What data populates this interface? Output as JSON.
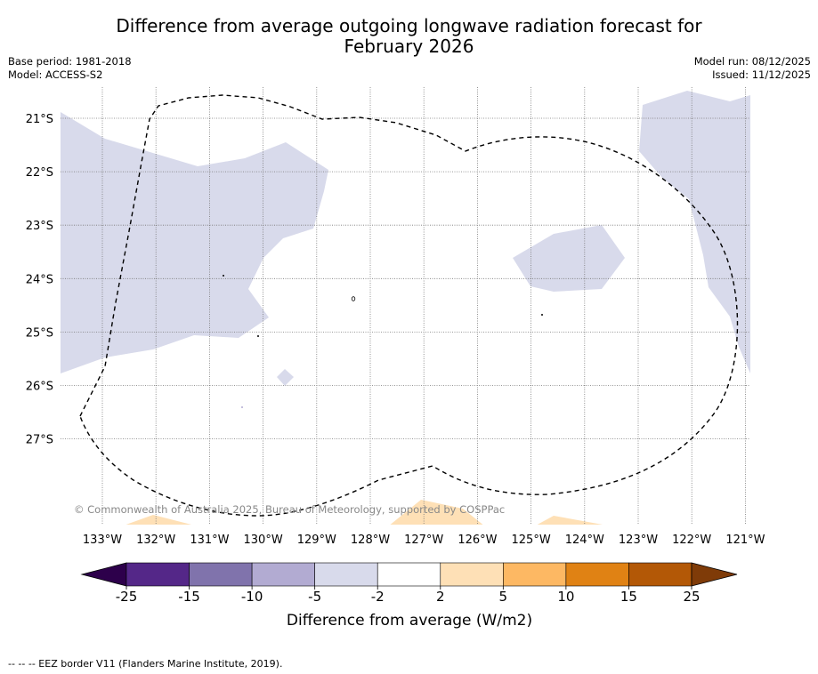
{
  "title_line1": "Difference from average outgoing longwave radiation forecast for",
  "title_line2": "February 2026",
  "base_period": "Base period: 1981-2018",
  "model": "Model: ACCESS-S2",
  "model_run": "Model run: 08/12/2025",
  "issued": "Issued: 11/12/2025",
  "copyright": "© Commonwealth of Australia 2025, Bureau of Meteorology, supported by COSPPac",
  "footer_note": "--  --  -- EEZ border V11 (Flanders Marine Institute, 2019).",
  "chart_data": {
    "type": "map",
    "variable": "Outgoing longwave radiation anomaly",
    "units": "W/m2",
    "lon_ticks": [
      "133°W",
      "132°W",
      "131°W",
      "130°W",
      "129°W",
      "128°W",
      "127°W",
      "126°W",
      "125°W",
      "124°W",
      "123°W",
      "122°W",
      "121°W"
    ],
    "lat_ticks": [
      "21°S",
      "22°S",
      "23°S",
      "24°S",
      "25°S",
      "26°S",
      "27°S"
    ],
    "colorbar": {
      "label": "Difference from average (W/m2)",
      "tick_labels": [
        "-25",
        "-15",
        "-10",
        "-5",
        "-2",
        "2",
        "5",
        "10",
        "15",
        "25"
      ],
      "colors": [
        "#2d004b",
        "#542788",
        "#8073ac",
        "#b2abd2",
        "#d8daeb",
        "#ffffff",
        "#fee0b6",
        "#fdb863",
        "#e08214",
        "#b35806",
        "#7f3b08"
      ]
    }
  }
}
